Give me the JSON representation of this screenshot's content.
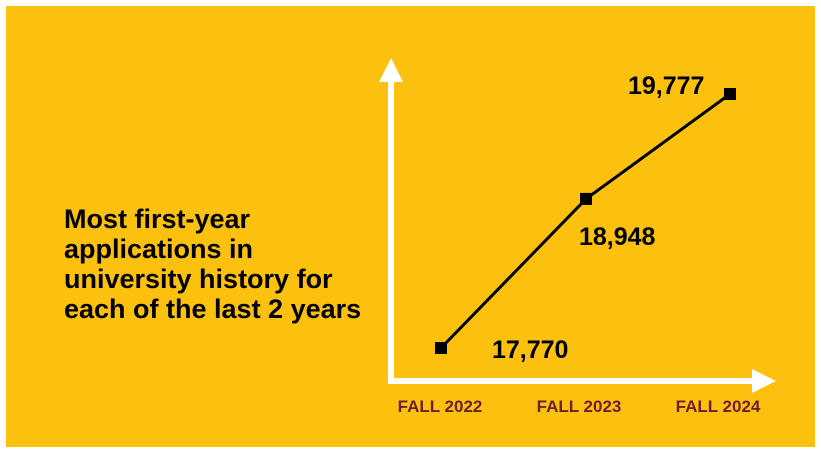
{
  "headline": "Most first-year applications in university history for each of the last 2 years",
  "colors": {
    "background": "#FCC10E",
    "line": "#000000",
    "axes": "#FFFFFF",
    "tick_labels": "#6B1F2A",
    "text": "#000000"
  },
  "chart_data": {
    "type": "line",
    "categories": [
      "FALL 2022",
      "FALL 2023",
      "FALL 2024"
    ],
    "series": [
      {
        "values": [
          17770,
          18948,
          19777
        ],
        "data_labels": [
          "17,770",
          "18,948",
          "19,777"
        ]
      }
    ],
    "title": "",
    "xlabel": "",
    "ylabel": "",
    "ylim": [
      17600,
      20000
    ],
    "grid": false,
    "legend": "none",
    "markers": "square"
  }
}
